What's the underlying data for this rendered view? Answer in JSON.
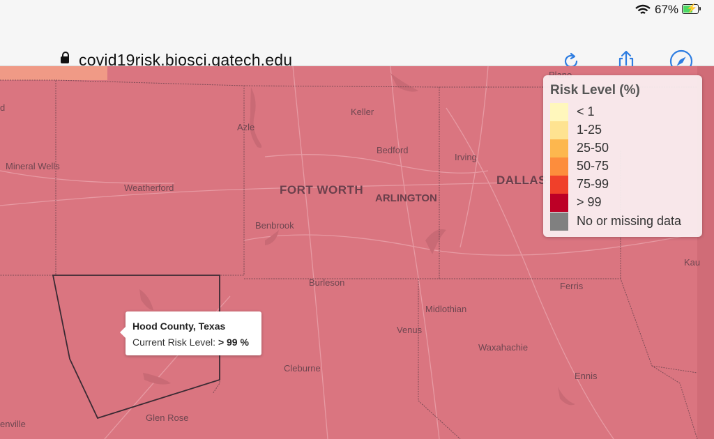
{
  "status_bar": {
    "battery_percent": "67%",
    "battery_level": 0.67
  },
  "browser": {
    "url": "covid19risk.biosci.gatech.edu"
  },
  "map": {
    "fill_color": "#da7580",
    "places_large": [
      "FORT WORTH",
      "ARLINGTON",
      "DALLAS"
    ],
    "places": [
      "Keller",
      "Bedford",
      "Irving",
      "Azle",
      "Mineral Wells",
      "Weatherford",
      "Benbrook",
      "Burleson",
      "Ferris",
      "Midlothian",
      "Venus",
      "Waxahachie",
      "Cleburne",
      "Ennis",
      "Glen Rose",
      "Plano",
      "Kau",
      "enville",
      "d"
    ]
  },
  "legend": {
    "title": "Risk Level (%)",
    "items": [
      {
        "label": "< 1",
        "color": "#fff7bc"
      },
      {
        "label": "1-25",
        "color": "#fee391"
      },
      {
        "label": "25-50",
        "color": "#fdb74e"
      },
      {
        "label": "50-75",
        "color": "#fd8d3c"
      },
      {
        "label": "75-99",
        "color": "#f0402a"
      },
      {
        "label": "> 99",
        "color": "#bd0026"
      },
      {
        "label": "No or missing data",
        "color": "#808080"
      }
    ]
  },
  "tooltip": {
    "county": "Hood County, Texas",
    "risk_label": "Current Risk Level: ",
    "risk_value": "> 99 %"
  }
}
